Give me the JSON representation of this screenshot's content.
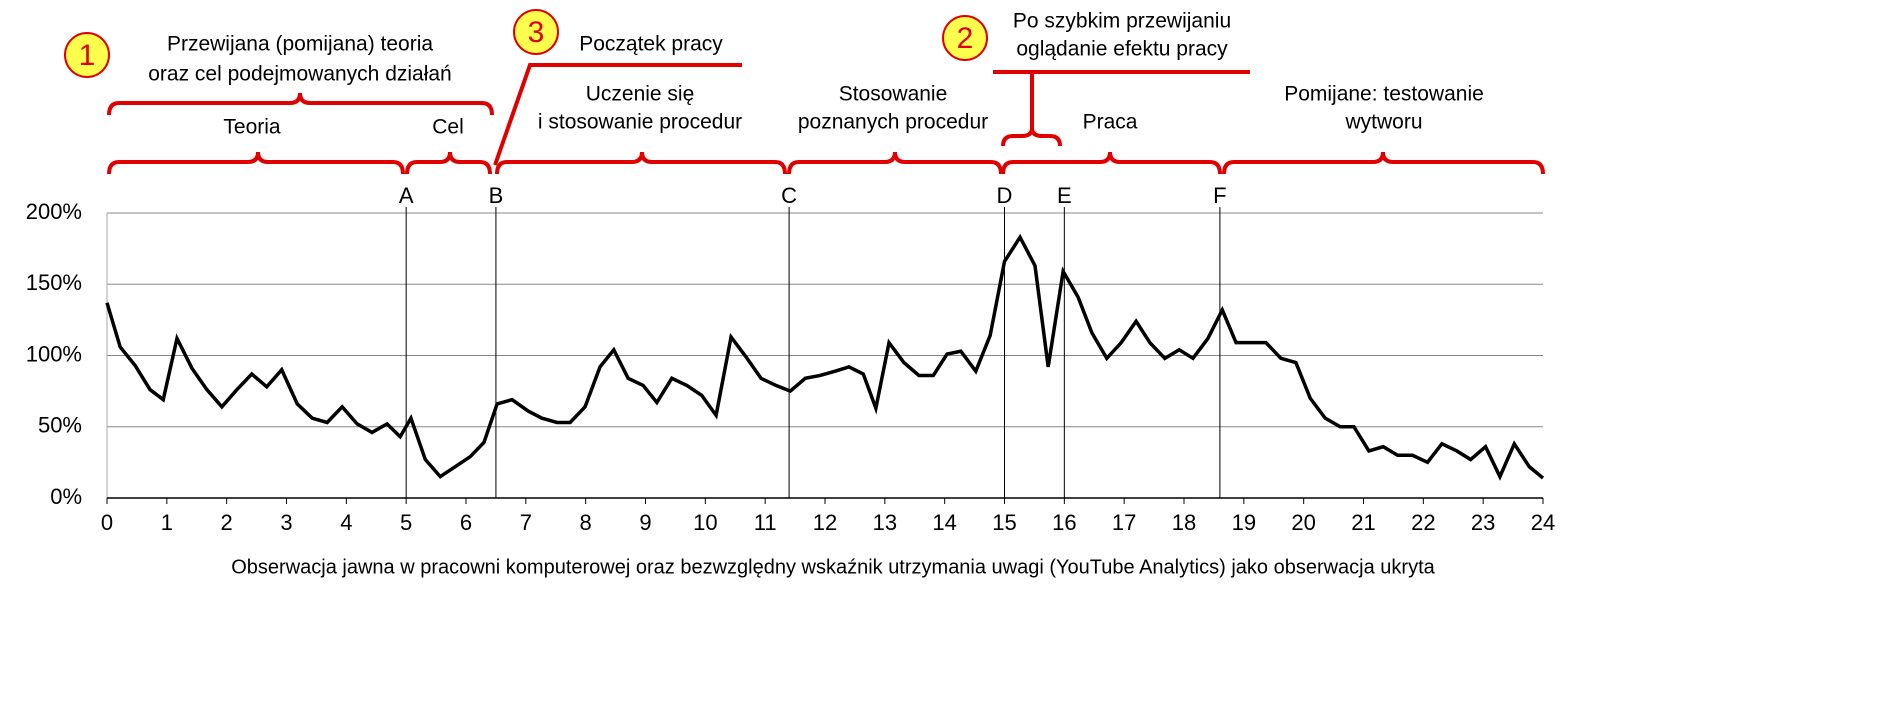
{
  "chart_data": {
    "type": "line",
    "xlabel": "Obserwacja jawna w pracowni komputerowej oraz bezwzględny wskaźnik utrzymania uwagi (YouTube Analytics) jako obserwacja ukryta",
    "x": [
      0,
      0.22,
      0.47,
      0.72,
      0.94,
      1.17,
      1.42,
      1.67,
      1.92,
      2.17,
      2.42,
      2.67,
      2.92,
      3.18,
      3.43,
      3.68,
      3.93,
      4.18,
      4.43,
      4.68,
      4.9,
      5.08,
      5.32,
      5.57,
      5.82,
      6.07,
      6.3,
      6.52,
      6.77,
      7.04,
      7.27,
      7.52,
      7.74,
      7.99,
      8.24,
      8.47,
      8.71,
      8.96,
      9.19,
      9.44,
      9.69,
      9.94,
      10.18,
      10.43,
      10.68,
      10.93,
      11.18,
      11.42,
      11.67,
      11.92,
      12.17,
      12.4,
      12.64,
      12.85,
      13.07,
      13.32,
      13.57,
      13.81,
      14.04,
      14.27,
      14.52,
      14.76,
      15,
      15.26,
      15.51,
      15.73,
      15.98,
      16.23,
      16.46,
      16.71,
      16.95,
      17.2,
      17.43,
      17.68,
      17.92,
      18.15,
      18.4,
      18.64,
      18.87,
      19.12,
      19.37,
      19.62,
      19.87,
      20.11,
      20.36,
      20.61,
      20.84,
      21.09,
      21.33,
      21.57,
      21.82,
      22.07,
      22.31,
      22.56,
      22.79,
      23.04,
      23.28,
      23.52,
      23.77,
      24
    ],
    "series": [
      {
        "color": "#000000",
        "values": [
          137,
          106,
          93,
          76,
          69,
          112,
          91,
          76,
          64,
          76,
          87,
          78,
          90,
          66,
          56,
          53,
          64,
          52,
          46,
          52,
          43,
          56,
          27,
          15,
          22,
          29,
          39,
          66,
          69,
          61,
          56,
          53,
          53,
          64,
          92,
          104,
          84,
          79,
          67,
          84,
          79,
          72,
          58,
          113,
          99,
          84,
          79,
          75,
          84,
          86,
          89,
          92,
          87,
          63,
          109,
          95,
          86,
          86,
          101,
          103,
          89,
          114,
          166,
          183,
          163,
          92,
          159,
          141,
          116,
          98,
          109,
          124,
          109,
          98,
          104,
          98,
          112,
          132,
          109,
          109,
          109,
          98,
          95,
          70,
          56,
          50,
          50,
          33,
          36,
          30,
          30,
          25,
          38,
          33,
          27,
          36,
          15,
          38,
          22,
          14
        ]
      }
    ],
    "xlim": [
      0,
      24
    ],
    "xticks": [
      0,
      1,
      2,
      3,
      4,
      5,
      6,
      7,
      8,
      9,
      10,
      11,
      12,
      13,
      14,
      15,
      16,
      17,
      18,
      19,
      20,
      21,
      22,
      23,
      24
    ],
    "ylim": [
      0,
      200
    ],
    "yticks": [
      {
        "value": 0,
        "label": "0%"
      },
      {
        "value": 50,
        "label": "50%"
      },
      {
        "value": 100,
        "label": "100%"
      },
      {
        "value": 150,
        "label": "150%"
      },
      {
        "value": 200,
        "label": "200%"
      }
    ],
    "grid": true,
    "markers": [
      {
        "label": "A",
        "x": 5
      },
      {
        "label": "B",
        "x": 6.5
      },
      {
        "label": "C",
        "x": 11.4
      },
      {
        "label": "D",
        "x": 15
      },
      {
        "label": "E",
        "x": 16
      },
      {
        "label": "F",
        "x": 18.6
      }
    ],
    "annotations": {
      "badges": [
        "1",
        "2",
        "3"
      ],
      "theory_skipped": [
        "Przewijana (pomijana) teoria",
        "oraz cel podejmowanych działań"
      ],
      "theory": "Teoria",
      "goal": "Cel",
      "work_start": "Początek pracy",
      "learning": [
        "Uczenie się",
        "i stosowanie procedur"
      ],
      "applying": [
        "Stosowanie",
        "poznanych procedur"
      ],
      "after_skip": [
        "Po szybkim przewijaniu",
        "oglądanie efektu pracy"
      ],
      "work": "Praca",
      "testing": [
        "Pomijane: testowanie",
        "wytworu"
      ]
    }
  }
}
